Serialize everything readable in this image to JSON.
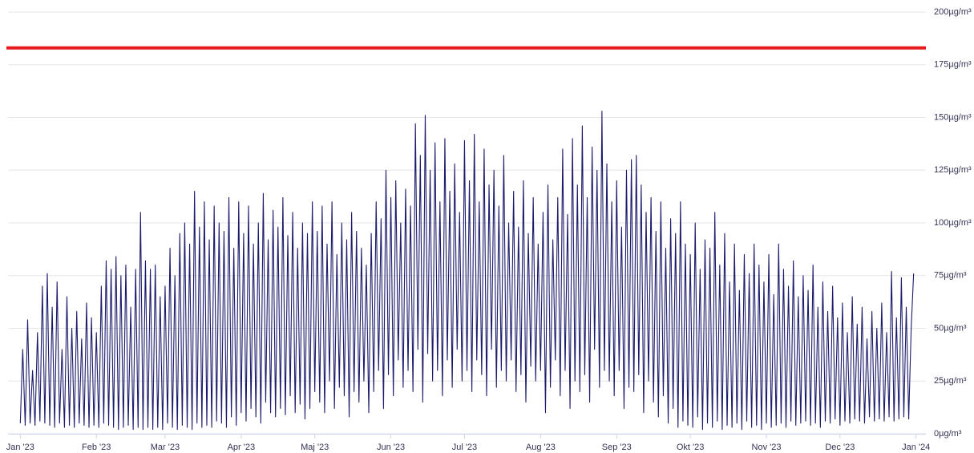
{
  "chart_data": {
    "type": "line",
    "x": [
      0,
      1,
      2,
      3,
      4,
      5,
      6,
      7,
      8,
      9,
      10,
      11,
      12,
      13,
      14,
      15,
      16,
      17,
      18,
      19,
      20,
      21,
      22,
      23,
      24,
      25,
      26,
      27,
      28,
      29,
      30,
      31,
      32,
      33,
      34,
      35,
      36,
      37,
      38,
      39,
      40,
      41,
      42,
      43,
      44,
      45,
      46,
      47,
      48,
      49,
      50,
      51,
      52,
      53,
      54,
      55,
      56,
      57,
      58,
      59,
      60,
      61,
      62,
      63,
      64,
      65,
      66,
      67,
      68,
      69,
      70,
      71,
      72,
      73,
      74,
      75,
      76,
      77,
      78,
      79,
      80,
      81,
      82,
      83,
      84,
      85,
      86,
      87,
      88,
      89,
      90,
      91,
      92,
      93,
      94,
      95,
      96,
      97,
      98,
      99,
      100,
      101,
      102,
      103,
      104,
      105,
      106,
      107,
      108,
      109,
      110,
      111,
      112,
      113,
      114,
      115,
      116,
      117,
      118,
      119,
      120,
      121,
      122,
      123,
      124,
      125,
      126,
      127,
      128,
      129,
      130,
      131,
      132,
      133,
      134,
      135,
      136,
      137,
      138,
      139,
      140,
      141,
      142,
      143,
      144,
      145,
      146,
      147,
      148,
      149,
      150,
      151,
      152,
      153,
      154,
      155,
      156,
      157,
      158,
      159,
      160,
      161,
      162,
      163,
      164,
      165,
      166,
      167,
      168,
      169,
      170,
      171,
      172,
      173,
      174,
      175,
      176,
      177,
      178,
      179,
      180,
      181,
      182,
      183,
      184,
      185,
      186,
      187,
      188,
      189,
      190,
      191,
      192,
      193,
      194,
      195,
      196,
      197,
      198,
      199,
      200,
      201,
      202,
      203,
      204,
      205,
      206,
      207,
      208,
      209,
      210,
      211,
      212,
      213,
      214,
      215,
      216,
      217,
      218,
      219,
      220,
      221,
      222,
      223,
      224,
      225,
      226,
      227,
      228,
      229,
      230,
      231,
      232,
      233,
      234,
      235,
      236,
      237,
      238,
      239,
      240,
      241,
      242,
      243,
      244,
      245,
      246,
      247,
      248,
      249,
      250,
      251,
      252,
      253,
      254,
      255,
      256,
      257,
      258,
      259,
      260,
      261,
      262,
      263,
      264,
      265,
      266,
      267,
      268,
      269,
      270,
      271,
      272,
      273,
      274,
      275,
      276,
      277,
      278,
      279,
      280,
      281,
      282,
      283,
      284,
      285,
      286,
      287,
      288,
      289,
      290,
      291,
      292,
      293,
      294,
      295,
      296,
      297,
      298,
      299,
      300,
      301,
      302,
      303,
      304,
      305,
      306,
      307,
      308,
      309,
      310,
      311,
      312,
      313,
      314,
      315,
      316,
      317,
      318,
      319,
      320,
      321,
      322,
      323,
      324,
      325,
      326,
      327,
      328,
      329,
      330,
      331,
      332,
      333,
      334,
      335,
      336,
      337,
      338,
      339,
      340,
      341,
      342,
      343,
      344,
      345,
      346,
      347,
      348,
      349,
      350,
      351,
      352,
      353,
      354,
      355,
      356,
      357,
      358,
      359,
      360,
      361,
      362,
      363,
      364
    ],
    "series": [
      {
        "color": "#1b1a6b",
        "values": [
          5,
          40,
          4,
          54,
          5,
          30,
          4,
          48,
          6,
          70,
          5,
          76,
          4,
          60,
          3,
          72,
          5,
          40,
          3,
          65,
          4,
          50,
          3,
          58,
          5,
          45,
          4,
          62,
          3,
          55,
          4,
          48,
          3,
          70,
          5,
          82,
          4,
          78,
          3,
          84,
          2,
          75,
          3,
          80,
          4,
          60,
          2,
          78,
          3,
          105,
          2,
          82,
          3,
          78,
          2,
          80,
          3,
          65,
          2,
          70,
          5,
          88,
          3,
          75,
          2,
          95,
          4,
          100,
          3,
          90,
          2,
          115,
          5,
          98,
          3,
          110,
          4,
          92,
          3,
          108,
          6,
          100,
          5,
          96,
          3,
          112,
          8,
          88,
          4,
          110,
          10,
          95,
          6,
          108,
          12,
          90,
          8,
          100,
          5,
          114,
          15,
          92,
          10,
          106,
          8,
          98,
          12,
          112,
          9,
          94,
          18,
          105,
          10,
          88,
          14,
          100,
          7,
          95,
          12,
          110,
          20,
          96,
          15,
          108,
          10,
          90,
          25,
          110,
          12,
          85,
          22,
          100,
          18,
          92,
          8,
          105,
          20,
          96,
          15,
          88,
          25,
          80,
          10,
          95,
          20,
          110,
          30,
          102,
          12,
          125,
          28,
          112,
          18,
          120,
          35,
          100,
          22,
          116,
          30,
          108,
          20,
          147,
          40,
          132,
          15,
          151,
          38,
          125,
          25,
          138,
          30,
          110,
          18,
          140,
          35,
          115,
          22,
          128,
          40,
          105,
          25,
          139,
          30,
          120,
          20,
          142,
          35,
          110,
          28,
          135,
          18,
          118,
          40,
          125,
          22,
          108,
          30,
          132,
          25,
          100,
          35,
          115,
          20,
          98,
          28,
          120,
          15,
          95,
          32,
          112,
          25,
          90,
          30,
          105,
          10,
          118,
          22,
          92,
          35,
          112,
          18,
          135,
          30,
          104,
          12,
          140,
          25,
          118,
          20,
          146,
          28,
          112,
          15,
          136,
          40,
          125,
          22,
          153,
          30,
          128,
          25,
          110,
          18,
          120,
          30,
          98,
          12,
          125,
          22,
          130,
          20,
          132,
          28,
          118,
          10,
          105,
          25,
          112,
          15,
          96,
          8,
          110,
          18,
          88,
          5,
          102,
          12,
          95,
          3,
          110,
          6,
          90,
          4,
          85,
          3,
          100,
          8,
          78,
          2,
          92,
          5,
          88,
          3,
          105,
          6,
          80,
          2,
          95,
          4,
          72,
          3,
          90,
          5,
          68,
          2,
          85,
          6,
          76,
          3,
          90,
          4,
          80,
          2,
          72,
          5,
          85,
          3,
          66,
          4,
          90,
          5,
          78,
          3,
          70,
          6,
          82,
          4,
          65,
          5,
          75,
          6,
          68,
          4,
          80,
          5,
          60,
          3,
          72,
          6,
          58,
          5,
          70,
          7,
          55,
          4,
          62,
          6,
          48,
          5,
          65,
          7,
          52,
          6,
          60,
          5,
          45,
          8,
          58,
          6,
          50,
          7,
          62,
          6,
          48,
          8,
          77,
          6,
          55,
          7,
          74,
          8,
          60,
          7,
          50,
          76
        ]
      }
    ],
    "xlim": [
      -5,
      369
    ],
    "xticks": [
      {
        "value": 0,
        "label": "Jan '23"
      },
      {
        "value": 31,
        "label": "Feb '23"
      },
      {
        "value": 59,
        "label": "Mar '23"
      },
      {
        "value": 90,
        "label": "Apr '23"
      },
      {
        "value": 120,
        "label": "Maj '23"
      },
      {
        "value": 151,
        "label": "Jun '23"
      },
      {
        "value": 181,
        "label": "Jul '23"
      },
      {
        "value": 212,
        "label": "Aug '23"
      },
      {
        "value": 243,
        "label": "Sep '23"
      },
      {
        "value": 273,
        "label": "Okt '23"
      },
      {
        "value": 304,
        "label": "Nov '23"
      },
      {
        "value": 334,
        "label": "Dec '23"
      },
      {
        "value": 365,
        "label": "Jan '24"
      }
    ],
    "ylim": [
      0,
      200
    ],
    "yticks": [
      {
        "value": 0,
        "label": "0µg/m³"
      },
      {
        "value": 25,
        "label": "25µg/m³"
      },
      {
        "value": 50,
        "label": "50µg/m³"
      },
      {
        "value": 75,
        "label": "75µg/m³"
      },
      {
        "value": 100,
        "label": "100µg/m³"
      },
      {
        "value": 125,
        "label": "125µg/m³"
      },
      {
        "value": 150,
        "label": "150µg/m³"
      },
      {
        "value": 175,
        "label": "175µg/m³"
      },
      {
        "value": 200,
        "label": "200µg/m³"
      }
    ],
    "grid": true,
    "threshold": {
      "value": 183,
      "color": "#e41a1c"
    }
  }
}
